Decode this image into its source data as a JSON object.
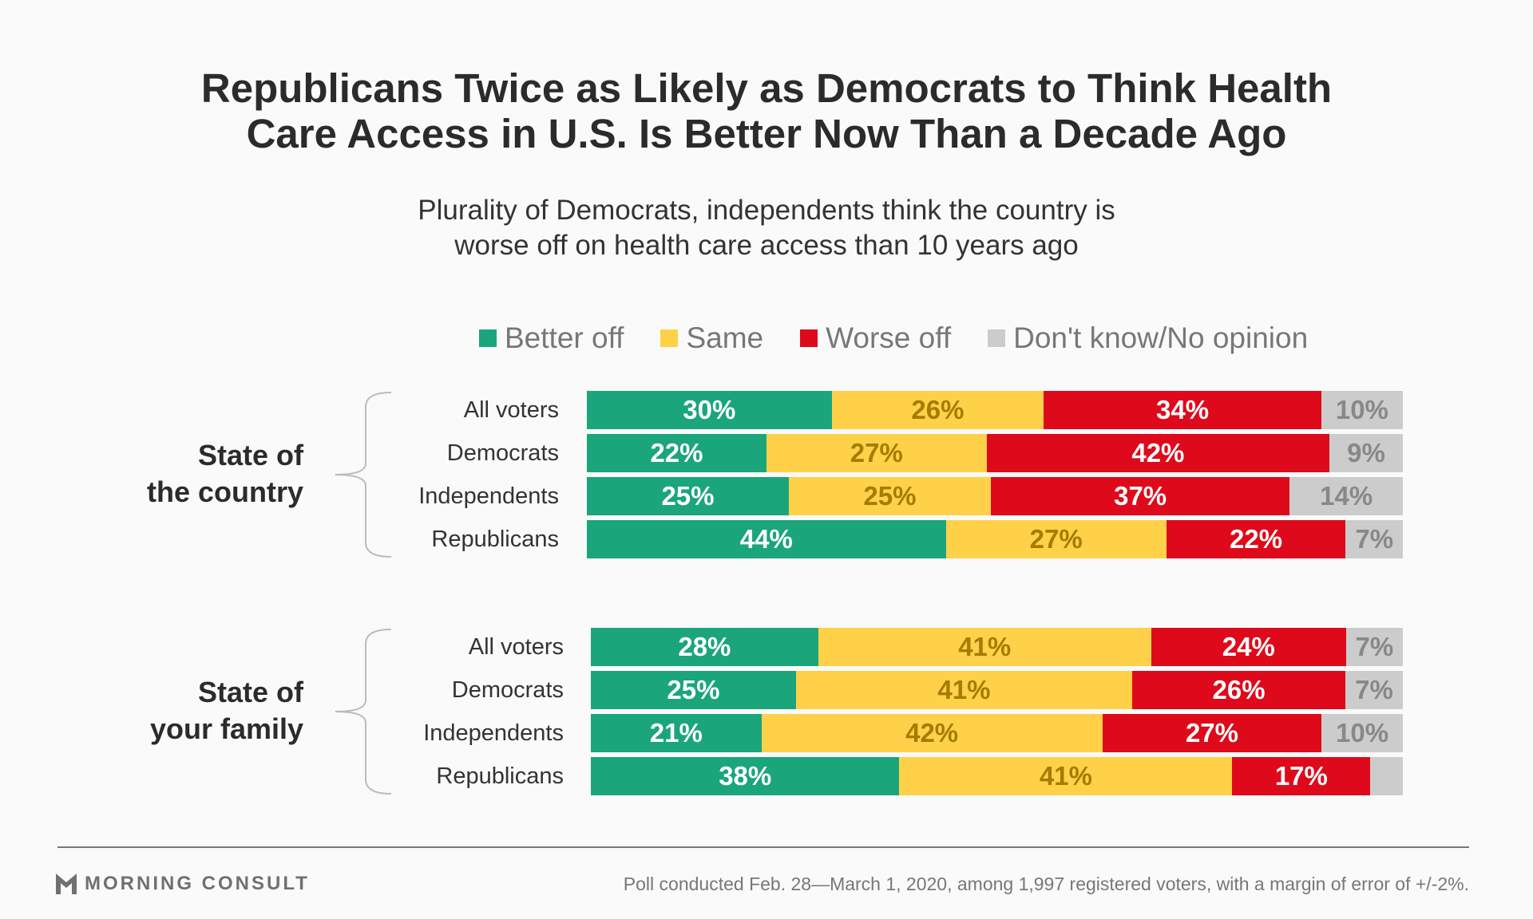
{
  "chart_data": {
    "type": "bar",
    "orientation": "horizontal-stacked-100",
    "title": "Republicans Twice as Likely as Democrats to Think Health Care Access in U.S. Is Better Now Than a Decade Ago",
    "title_lines": [
      "Republicans Twice as Likely as Democrats to Think Health",
      "Care Access in U.S. Is Better Now Than a Decade Ago"
    ],
    "subtitle_lines": [
      "Plurality of Democrats, independents think the country is",
      "worse off on health care access than 10 years ago"
    ],
    "legend": [
      {
        "label": "Better off",
        "color": "#1ba57b",
        "text_color": "#ffffff"
      },
      {
        "label": "Same",
        "color": "#ffd149",
        "text_color": "#a47c00"
      },
      {
        "label": "Worse off",
        "color": "#de0a1b",
        "text_color": "#ffffff"
      },
      {
        "label": "Don't know/No opinion",
        "color": "#cccccc",
        "text_color": "#888888"
      }
    ],
    "groups": [
      {
        "label_lines": [
          "State of",
          "the country"
        ],
        "categories": [
          "All voters",
          "Democrats",
          "Independents",
          "Republicans"
        ],
        "values": [
          [
            30,
            26,
            34,
            10
          ],
          [
            22,
            27,
            42,
            9
          ],
          [
            25,
            25,
            37,
            14
          ],
          [
            44,
            27,
            22,
            7
          ]
        ],
        "labels": [
          [
            "30%",
            "26%",
            "34%",
            "10%"
          ],
          [
            "22%",
            "27%",
            "42%",
            "9%"
          ],
          [
            "25%",
            "25%",
            "37%",
            "14%"
          ],
          [
            "44%",
            "27%",
            "22%",
            "7%"
          ]
        ]
      },
      {
        "label_lines": [
          "State of",
          "your family"
        ],
        "categories": [
          "All voters",
          "Democrats",
          "Independents",
          "Republicans"
        ],
        "values": [
          [
            28,
            41,
            24,
            7
          ],
          [
            25,
            41,
            26,
            7
          ],
          [
            21,
            42,
            27,
            10
          ],
          [
            38,
            41,
            17,
            4
          ]
        ],
        "labels": [
          [
            "28%",
            "41%",
            "24%",
            "7%"
          ],
          [
            "25%",
            "41%",
            "26%",
            "7%"
          ],
          [
            "21%",
            "42%",
            "27%",
            "10%"
          ],
          [
            "38%",
            "41%",
            "17%",
            ""
          ]
        ]
      }
    ]
  },
  "footer": {
    "logo": "MORNING CONSULT",
    "note": "Poll conducted Feb. 28—March 1, 2020, among 1,997 registered voters, with a margin of error of +/-2%."
  }
}
